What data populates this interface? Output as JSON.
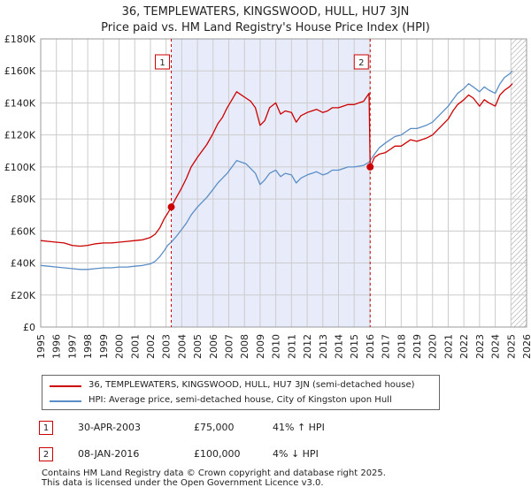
{
  "chart_data": {
    "type": "line",
    "title": "36, TEMPLEWATERS, KINGSWOOD, HULL, HU7 3JN",
    "subtitle": "Price paid vs. HM Land Registry's House Price Index (HPI)",
    "xlim": [
      1995,
      2026
    ],
    "ylim": [
      0,
      180000
    ],
    "x_ticks": [
      "1995",
      "1996",
      "1997",
      "1998",
      "1999",
      "2000",
      "2001",
      "2002",
      "2003",
      "2004",
      "2005",
      "2006",
      "2007",
      "2008",
      "2009",
      "2010",
      "2011",
      "2012",
      "2013",
      "2014",
      "2015",
      "2016",
      "2017",
      "2018",
      "2019",
      "2020",
      "2021",
      "2022",
      "2023",
      "2024",
      "2025",
      "2026"
    ],
    "y_ticks": [
      {
        "value": 0,
        "label": "£0"
      },
      {
        "value": 20000,
        "label": "£20K"
      },
      {
        "value": 40000,
        "label": "£40K"
      },
      {
        "value": 60000,
        "label": "£60K"
      },
      {
        "value": 80000,
        "label": "£80K"
      },
      {
        "value": 100000,
        "label": "£100K"
      },
      {
        "value": 120000,
        "label": "£120K"
      },
      {
        "value": 140000,
        "label": "£140K"
      },
      {
        "value": 160000,
        "label": "£160K"
      },
      {
        "value": 180000,
        "label": "£180K"
      }
    ],
    "shaded_range": [
      2003.33,
      2016.02
    ],
    "future_hatch_from": 2025.0,
    "series": [
      {
        "name": "36, TEMPLEWATERS, KINGSWOOD, HULL, HU7 3JN (semi-detached house)",
        "color": "#cc0000",
        "x": [
          1995.0,
          1995.5,
          1996.0,
          1996.5,
          1997.0,
          1997.5,
          1998.0,
          1998.5,
          1999.0,
          1999.5,
          2000.0,
          2000.5,
          2001.0,
          2001.5,
          2002.0,
          2002.3,
          2002.6,
          2002.9,
          2003.1,
          2003.33,
          2003.6,
          2004.0,
          2004.3,
          2004.6,
          2005.0,
          2005.3,
          2005.6,
          2006.0,
          2006.3,
          2006.6,
          2006.9,
          2007.2,
          2007.5,
          2007.8,
          2008.1,
          2008.4,
          2008.7,
          2009.0,
          2009.3,
          2009.6,
          2010.0,
          2010.3,
          2010.6,
          2011.0,
          2011.3,
          2011.6,
          2012.0,
          2012.3,
          2012.6,
          2013.0,
          2013.3,
          2013.6,
          2014.0,
          2014.3,
          2014.6,
          2015.0,
          2015.3,
          2015.6,
          2015.95,
          2016.02,
          2016.3,
          2016.6,
          2017.0,
          2017.3,
          2017.6,
          2018.0,
          2018.3,
          2018.6,
          2019.0,
          2019.3,
          2019.6,
          2020.0,
          2020.3,
          2020.6,
          2021.0,
          2021.3,
          2021.6,
          2022.0,
          2022.3,
          2022.6,
          2023.0,
          2023.3,
          2023.6,
          2024.0,
          2024.3,
          2024.6,
          2024.9,
          2025.1
        ],
        "values": [
          54000,
          53500,
          53000,
          52500,
          51000,
          50500,
          51000,
          52000,
          52500,
          52500,
          53000,
          53500,
          54000,
          54500,
          56000,
          58000,
          62000,
          68000,
          71000,
          75000,
          80000,
          87000,
          93000,
          100000,
          106000,
          110000,
          114000,
          121000,
          127000,
          131000,
          137000,
          142000,
          147000,
          145000,
          143000,
          141000,
          137000,
          126000,
          129000,
          137000,
          140000,
          133000,
          135000,
          134000,
          128000,
          132000,
          134000,
          135000,
          136000,
          134000,
          135000,
          137000,
          137000,
          138000,
          139000,
          139000,
          140000,
          141000,
          146000,
          100000,
          106000,
          108000,
          109000,
          111000,
          113000,
          113000,
          115000,
          117000,
          116000,
          117000,
          118000,
          120000,
          123000,
          126000,
          130000,
          135000,
          139000,
          142000,
          145000,
          143000,
          138000,
          142000,
          140000,
          138000,
          145000,
          148000,
          150000,
          152000
        ]
      },
      {
        "name": "HPI: Average price, semi-detached house, City of Kingston upon Hull",
        "color": "#5b8ec6",
        "x": [
          1995.0,
          1995.5,
          1996.0,
          1996.5,
          1997.0,
          1997.5,
          1998.0,
          1998.5,
          1999.0,
          1999.5,
          2000.0,
          2000.5,
          2001.0,
          2001.5,
          2002.0,
          2002.3,
          2002.6,
          2002.9,
          2003.1,
          2003.33,
          2003.6,
          2004.0,
          2004.3,
          2004.6,
          2005.0,
          2005.3,
          2005.6,
          2006.0,
          2006.3,
          2006.6,
          2006.9,
          2007.2,
          2007.5,
          2007.8,
          2008.1,
          2008.4,
          2008.7,
          2009.0,
          2009.3,
          2009.6,
          2010.0,
          2010.3,
          2010.6,
          2011.0,
          2011.3,
          2011.6,
          2012.0,
          2012.3,
          2012.6,
          2013.0,
          2013.3,
          2013.6,
          2014.0,
          2014.3,
          2014.6,
          2015.0,
          2015.3,
          2015.6,
          2015.95,
          2016.02,
          2016.3,
          2016.6,
          2017.0,
          2017.3,
          2017.6,
          2018.0,
          2018.3,
          2018.6,
          2019.0,
          2019.3,
          2019.6,
          2020.0,
          2020.3,
          2020.6,
          2021.0,
          2021.3,
          2021.6,
          2022.0,
          2022.3,
          2022.6,
          2023.0,
          2023.3,
          2023.6,
          2024.0,
          2024.3,
          2024.6,
          2024.9,
          2025.1
        ],
        "values": [
          38500,
          38000,
          37500,
          37000,
          36500,
          36000,
          36000,
          36500,
          37000,
          37000,
          37500,
          37500,
          38000,
          38500,
          39500,
          41000,
          44000,
          48000,
          51000,
          53000,
          56000,
          61000,
          65000,
          70000,
          75000,
          78000,
          81000,
          86000,
          90000,
          93000,
          96000,
          100000,
          104000,
          103000,
          102000,
          99000,
          96000,
          89000,
          92000,
          96000,
          98000,
          94000,
          96000,
          95000,
          90000,
          93000,
          95000,
          96000,
          97000,
          95000,
          96000,
          98000,
          98000,
          99000,
          100000,
          100000,
          100500,
          101000,
          103000,
          104000,
          108000,
          112000,
          115000,
          117000,
          119000,
          120000,
          122000,
          124000,
          124000,
          125000,
          126000,
          128000,
          131000,
          134000,
          138000,
          142000,
          146000,
          149000,
          152000,
          150000,
          147000,
          150000,
          148000,
          146000,
          152000,
          156000,
          158000,
          160000
        ]
      }
    ],
    "markers": [
      {
        "label": "1",
        "x": 2003.33,
        "y": 75000
      },
      {
        "label": "2",
        "x": 2016.02,
        "y": 100000
      }
    ]
  },
  "legend": {
    "item1": "36, TEMPLEWATERS, KINGSWOOD, HULL, HU7 3JN (semi-detached house)",
    "item2": "HPI: Average price, semi-detached house, City of Kingston upon Hull"
  },
  "transactions": [
    {
      "num": "1",
      "date": "30-APR-2003",
      "price": "£75,000",
      "hpi": "41% ↑ HPI"
    },
    {
      "num": "2",
      "date": "08-JAN-2016",
      "price": "£100,000",
      "hpi": "4% ↓ HPI"
    }
  ],
  "footer": {
    "line1": "Contains HM Land Registry data © Crown copyright and database right 2025.",
    "line2": "This data is licensed under the Open Government Licence v3.0."
  },
  "colors": {
    "property": "#cc0000",
    "hpi": "#5b8ec6",
    "shade": "#e8ecfa",
    "grid": "#cccccc"
  }
}
